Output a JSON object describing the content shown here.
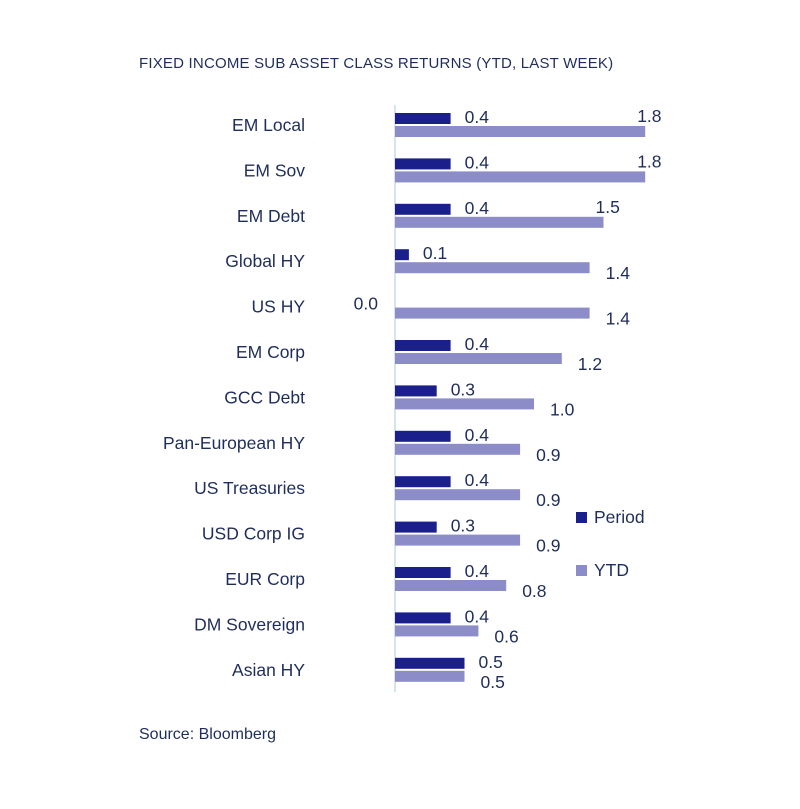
{
  "title": "FIXED INCOME SUB ASSET CLASS RETURNS (YTD, LAST WEEK)",
  "source": "Source: Bloomberg",
  "colors": {
    "period": "#1a1f8c",
    "ytd": "#8c8cc8",
    "axis": "#c9dbe8",
    "text": "#1f2d5c"
  },
  "chart_data": {
    "type": "bar",
    "orientation": "horizontal",
    "categories": [
      "EM Local",
      "EM Sov",
      "EM Debt",
      "Global HY",
      "US HY",
      "EM Corp",
      "GCC Debt",
      "Pan-European HY",
      "US Treasuries",
      "USD Corp IG",
      "EUR Corp",
      "DM Sovereign",
      "Asian HY"
    ],
    "series": [
      {
        "name": "Period",
        "values": [
          0.4,
          0.4,
          0.4,
          0.1,
          0.0,
          0.4,
          0.3,
          0.4,
          0.4,
          0.3,
          0.4,
          0.4,
          0.5
        ],
        "labels": [
          "0.4",
          "0.4",
          "0.4",
          "0.1",
          "0.0",
          "0.4",
          "0.3",
          "0.4",
          "0.4",
          "0.3",
          "0.4",
          "0.4",
          "0.5"
        ]
      },
      {
        "name": "YTD",
        "values": [
          1.8,
          1.8,
          1.5,
          1.4,
          1.4,
          1.2,
          1.0,
          0.9,
          0.9,
          0.9,
          0.8,
          0.6,
          0.5
        ],
        "labels": [
          "1.8",
          "1.8",
          "1.5",
          "1.4",
          "1.4",
          "1.2",
          "1.0",
          "0.9",
          "0.9",
          "0.9",
          "0.8",
          "0.6",
          "0.5"
        ]
      }
    ],
    "legend_position": "right",
    "grid": false
  }
}
